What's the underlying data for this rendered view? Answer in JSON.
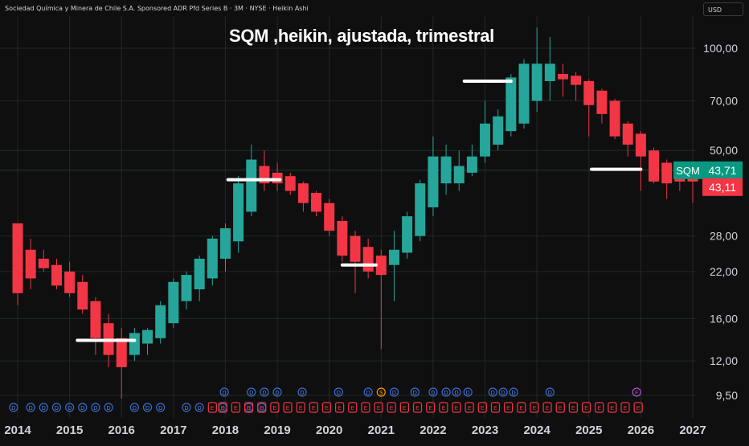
{
  "header": {
    "instrument": "Sociedad Química y Minera de Chile S.A. Sponsored ADR Pfd Series B · 3M · NYSE · Heikin Ashi"
  },
  "currency": "USD",
  "annotation": "SQM ,heikin, ajustada, trimestral",
  "colors": {
    "up": "#26a69a",
    "down": "#f23645",
    "background": "#0f0f0f",
    "grid": "#1e2a24",
    "axis_text": "#d1d4dc",
    "line": "#ffffff"
  },
  "chart_data": {
    "type": "candlestick",
    "style": "heikin-ashi",
    "ticker": "SQM",
    "timeframe": "3M",
    "y_scale": "log",
    "ylim": [
      8.8,
      116
    ],
    "x_range": [
      2013.92,
      2027.15
    ],
    "x_ticks": [
      "2014",
      "2015",
      "2016",
      "2017",
      "2018",
      "2019",
      "2020",
      "2021",
      "2022",
      "2023",
      "2024",
      "2025",
      "2026",
      "2027"
    ],
    "y_ticks": [
      "9,50",
      "12,00",
      "16,00",
      "22,00",
      "28,00",
      "50,00",
      "70,00",
      "100,00"
    ],
    "y_tick_values": [
      9.5,
      12,
      16,
      22,
      28,
      50,
      70,
      100
    ],
    "grid": true,
    "price_labels": [
      {
        "ticker": "SQM",
        "value": "43,71",
        "color": "#089981"
      },
      {
        "ticker": "",
        "value": "43,11",
        "color": "#f23645"
      }
    ],
    "candles": [
      {
        "t": 2014.0,
        "o": 30.5,
        "h": 30.5,
        "l": 17.5,
        "c": 19.0,
        "dir": "down"
      },
      {
        "t": 2014.25,
        "o": 25.5,
        "h": 27.5,
        "l": 19.5,
        "c": 21.0,
        "dir": "down"
      },
      {
        "t": 2014.5,
        "o": 24.0,
        "h": 25.5,
        "l": 22.0,
        "c": 22.5,
        "dir": "down"
      },
      {
        "t": 2014.75,
        "o": 23.0,
        "h": 24.0,
        "l": 19.5,
        "c": 20.0,
        "dir": "down"
      },
      {
        "t": 2015.0,
        "o": 22.0,
        "h": 23.5,
        "l": 18.5,
        "c": 19.0,
        "dir": "down"
      },
      {
        "t": 2015.25,
        "o": 20.5,
        "h": 21.5,
        "l": 16.5,
        "c": 17.0,
        "dir": "down"
      },
      {
        "t": 2015.5,
        "o": 18.0,
        "h": 18.5,
        "l": 12.5,
        "c": 14.0,
        "dir": "down"
      },
      {
        "t": 2015.75,
        "o": 15.5,
        "h": 16.5,
        "l": 11.5,
        "c": 12.5,
        "dir": "down"
      },
      {
        "t": 2016.0,
        "o": 14.0,
        "h": 15.0,
        "l": 9.3,
        "c": 11.5,
        "dir": "down"
      },
      {
        "t": 2016.25,
        "o": 12.5,
        "h": 15.0,
        "l": 12.0,
        "c": 14.5,
        "dir": "up"
      },
      {
        "t": 2016.5,
        "o": 13.5,
        "h": 15.0,
        "l": 12.5,
        "c": 14.8,
        "dir": "up"
      },
      {
        "t": 2016.75,
        "o": 14.0,
        "h": 18.0,
        "l": 13.5,
        "c": 17.5,
        "dir": "up"
      },
      {
        "t": 2017.0,
        "o": 15.5,
        "h": 21.0,
        "l": 15.0,
        "c": 20.5,
        "dir": "up"
      },
      {
        "t": 2017.25,
        "o": 18.0,
        "h": 22.0,
        "l": 17.0,
        "c": 21.5,
        "dir": "up"
      },
      {
        "t": 2017.5,
        "o": 19.5,
        "h": 24.5,
        "l": 18.0,
        "c": 24.0,
        "dir": "up"
      },
      {
        "t": 2017.75,
        "o": 21.0,
        "h": 28.0,
        "l": 20.0,
        "c": 27.5,
        "dir": "up"
      },
      {
        "t": 2018.0,
        "o": 24.0,
        "h": 30.5,
        "l": 22.0,
        "c": 29.5,
        "dir": "up"
      },
      {
        "t": 2018.25,
        "o": 27.0,
        "h": 42.0,
        "l": 25.0,
        "c": 40.0,
        "dir": "up"
      },
      {
        "t": 2018.5,
        "o": 33.0,
        "h": 52.0,
        "l": 32.0,
        "c": 47.0,
        "dir": "up"
      },
      {
        "t": 2018.75,
        "o": 45.0,
        "h": 50.0,
        "l": 38.0,
        "c": 40.0,
        "dir": "down"
      },
      {
        "t": 2019.0,
        "o": 43.0,
        "h": 46.0,
        "l": 38.0,
        "c": 40.0,
        "dir": "down"
      },
      {
        "t": 2019.25,
        "o": 42.0,
        "h": 43.0,
        "l": 37.0,
        "c": 38.0,
        "dir": "down"
      },
      {
        "t": 2019.5,
        "o": 40.0,
        "h": 40.5,
        "l": 33.0,
        "c": 35.0,
        "dir": "down"
      },
      {
        "t": 2019.75,
        "o": 37.5,
        "h": 38.0,
        "l": 32.0,
        "c": 33.0,
        "dir": "down"
      },
      {
        "t": 2020.0,
        "o": 35.0,
        "h": 36.0,
        "l": 28.0,
        "c": 29.0,
        "dir": "down"
      },
      {
        "t": 2020.25,
        "o": 31.0,
        "h": 32.0,
        "l": 23.5,
        "c": 24.5,
        "dir": "down"
      },
      {
        "t": 2020.5,
        "o": 28.0,
        "h": 29.0,
        "l": 19.0,
        "c": 23.5,
        "dir": "down"
      },
      {
        "t": 2020.75,
        "o": 26.0,
        "h": 27.5,
        "l": 21.0,
        "c": 22.0,
        "dir": "down"
      },
      {
        "t": 2021.0,
        "o": 24.5,
        "h": 25.5,
        "l": 13.0,
        "c": 21.5,
        "dir": "down"
      },
      {
        "t": 2021.25,
        "o": 23.0,
        "h": 29.0,
        "l": 18.0,
        "c": 25.5,
        "dir": "up"
      },
      {
        "t": 2021.5,
        "o": 25.0,
        "h": 33.0,
        "l": 24.0,
        "c": 32.0,
        "dir": "up"
      },
      {
        "t": 2021.75,
        "o": 28.0,
        "h": 41.0,
        "l": 27.0,
        "c": 40.0,
        "dir": "up"
      },
      {
        "t": 2022.0,
        "o": 34.0,
        "h": 55.0,
        "l": 32.0,
        "c": 48.0,
        "dir": "up"
      },
      {
        "t": 2022.25,
        "o": 40.0,
        "h": 52.0,
        "l": 37.0,
        "c": 48.0,
        "dir": "up"
      },
      {
        "t": 2022.5,
        "o": 40.0,
        "h": 50.0,
        "l": 38.0,
        "c": 45.0,
        "dir": "up"
      },
      {
        "t": 2022.75,
        "o": 43.0,
        "h": 52.0,
        "l": 42.0,
        "c": 48.0,
        "dir": "up"
      },
      {
        "t": 2023.0,
        "o": 48.0,
        "h": 70.0,
        "l": 46.0,
        "c": 60.0,
        "dir": "up"
      },
      {
        "t": 2023.25,
        "o": 52.0,
        "h": 66.0,
        "l": 50.0,
        "c": 63.0,
        "dir": "up"
      },
      {
        "t": 2023.5,
        "o": 57.0,
        "h": 84.0,
        "l": 55.0,
        "c": 82.0,
        "dir": "up"
      },
      {
        "t": 2023.75,
        "o": 60.0,
        "h": 93.0,
        "l": 58.0,
        "c": 90.0,
        "dir": "up"
      },
      {
        "t": 2024.0,
        "o": 70.0,
        "h": 115.0,
        "l": 65.0,
        "c": 90.0,
        "dir": "up"
      },
      {
        "t": 2024.25,
        "o": 80.0,
        "h": 108.0,
        "l": 70.0,
        "c": 90.0,
        "dir": "up"
      },
      {
        "t": 2024.5,
        "o": 84.0,
        "h": 90.0,
        "l": 72.0,
        "c": 81.0,
        "dir": "down"
      },
      {
        "t": 2024.75,
        "o": 83.0,
        "h": 85.0,
        "l": 70.0,
        "c": 78.0,
        "dir": "down"
      },
      {
        "t": 2025.0,
        "o": 80.0,
        "h": 81.0,
        "l": 55.0,
        "c": 68.0,
        "dir": "down"
      },
      {
        "t": 2025.25,
        "o": 75.0,
        "h": 76.0,
        "l": 60.0,
        "c": 64.0,
        "dir": "down"
      },
      {
        "t": 2025.5,
        "o": 70.0,
        "h": 71.0,
        "l": 54.0,
        "c": 55.0,
        "dir": "down"
      },
      {
        "t": 2025.75,
        "o": 60.0,
        "h": 61.0,
        "l": 48.0,
        "c": 52.0,
        "dir": "down"
      },
      {
        "t": 2026.0,
        "o": 56.0,
        "h": 57.0,
        "l": 38.0,
        "c": 48.0,
        "dir": "down"
      },
      {
        "t": 2026.25,
        "o": 50.0,
        "h": 51.0,
        "l": 40.0,
        "c": 40.5,
        "dir": "down"
      },
      {
        "t": 2026.5,
        "o": 46.0,
        "h": 47.0,
        "l": 36.0,
        "c": 40.0,
        "dir": "down"
      },
      {
        "t": 2026.75,
        "o": 43.0,
        "h": 44.0,
        "l": 38.0,
        "c": 40.5,
        "dir": "down"
      },
      {
        "t": 2027.0,
        "o": 42.0,
        "h": 43.5,
        "l": 35.0,
        "c": 40.5,
        "dir": "down"
      }
    ],
    "horizontal_segments": [
      {
        "t0": 2015.15,
        "t1": 2016.25,
        "y": 13.8
      },
      {
        "t0": 2018.05,
        "t1": 2019.05,
        "y": 41.0
      },
      {
        "t0": 2020.25,
        "t1": 2020.9,
        "y": 23.0
      },
      {
        "t0": 2022.6,
        "t1": 2023.5,
        "y": 80.0
      },
      {
        "t0": 2025.05,
        "t1": 2026.0,
        "y": 44.0
      }
    ],
    "events": [
      {
        "t": 2013.92,
        "type": "D"
      },
      {
        "t": 2014.25,
        "type": "D"
      },
      {
        "t": 2014.5,
        "type": "D"
      },
      {
        "t": 2014.75,
        "type": "D"
      },
      {
        "t": 2015.0,
        "type": "D"
      },
      {
        "t": 2015.25,
        "type": "D"
      },
      {
        "t": 2015.5,
        "type": "D"
      },
      {
        "t": 2015.75,
        "type": "D"
      },
      {
        "t": 2016.25,
        "type": "D"
      },
      {
        "t": 2016.5,
        "type": "D"
      },
      {
        "t": 2016.75,
        "type": "D"
      },
      {
        "t": 2017.25,
        "type": "D"
      },
      {
        "t": 2017.5,
        "type": "D"
      },
      {
        "t": 2017.75,
        "type": "E"
      },
      {
        "t": 2017.95,
        "type": "D"
      },
      {
        "t": 2017.95,
        "type": "E"
      },
      {
        "t": 2018.2,
        "type": "E"
      },
      {
        "t": 2018.45,
        "type": "D"
      },
      {
        "t": 2018.45,
        "type": "E"
      },
      {
        "t": 2018.7,
        "type": "D"
      },
      {
        "t": 2018.7,
        "type": "E"
      },
      {
        "t": 2018.95,
        "type": "E"
      },
      {
        "t": 2019.2,
        "type": "E"
      },
      {
        "t": 2019.45,
        "type": "E"
      },
      {
        "t": 2019.7,
        "type": "E"
      },
      {
        "t": 2019.95,
        "type": "E"
      },
      {
        "t": 2020.2,
        "type": "E"
      },
      {
        "t": 2020.45,
        "type": "E"
      },
      {
        "t": 2020.7,
        "type": "E"
      },
      {
        "t": 2020.95,
        "type": "E"
      },
      {
        "t": 2021.2,
        "type": "E"
      },
      {
        "t": 2021.45,
        "type": "E"
      },
      {
        "t": 2021.7,
        "type": "E"
      },
      {
        "t": 2021.95,
        "type": "E"
      },
      {
        "t": 2022.2,
        "type": "E"
      },
      {
        "t": 2022.45,
        "type": "E"
      },
      {
        "t": 2022.7,
        "type": "E"
      },
      {
        "t": 2022.95,
        "type": "E"
      },
      {
        "t": 2023.2,
        "type": "E"
      },
      {
        "t": 2023.45,
        "type": "E"
      },
      {
        "t": 2023.7,
        "type": "E"
      },
      {
        "t": 2023.95,
        "type": "E"
      },
      {
        "t": 2024.2,
        "type": "E"
      },
      {
        "t": 2024.45,
        "type": "E"
      },
      {
        "t": 2024.7,
        "type": "E"
      },
      {
        "t": 2024.95,
        "type": "E"
      },
      {
        "t": 2025.2,
        "type": "E"
      },
      {
        "t": 2025.45,
        "type": "E"
      },
      {
        "t": 2025.7,
        "type": "E"
      },
      {
        "t": 2025.95,
        "type": "E"
      }
    ],
    "upper_events": [
      {
        "t": 2017.98,
        "type": "D"
      },
      {
        "t": 2018.5,
        "type": "D"
      },
      {
        "t": 2018.75,
        "type": "D"
      },
      {
        "t": 2019.0,
        "type": "D"
      },
      {
        "t": 2019.48,
        "type": "D"
      },
      {
        "t": 2020.18,
        "type": "D"
      },
      {
        "t": 2020.75,
        "type": "D"
      },
      {
        "t": 2021.0,
        "type": "S"
      },
      {
        "t": 2021.25,
        "type": "D"
      },
      {
        "t": 2021.65,
        "type": "D"
      },
      {
        "t": 2022.0,
        "type": "D"
      },
      {
        "t": 2022.25,
        "type": "D"
      },
      {
        "t": 2022.45,
        "type": "D"
      },
      {
        "t": 2022.67,
        "type": "D"
      },
      {
        "t": 2023.15,
        "type": "D"
      },
      {
        "t": 2023.35,
        "type": "D"
      },
      {
        "t": 2023.55,
        "type": "D"
      },
      {
        "t": 2024.25,
        "type": "D"
      },
      {
        "t": 2025.92,
        "type": "F"
      }
    ]
  }
}
